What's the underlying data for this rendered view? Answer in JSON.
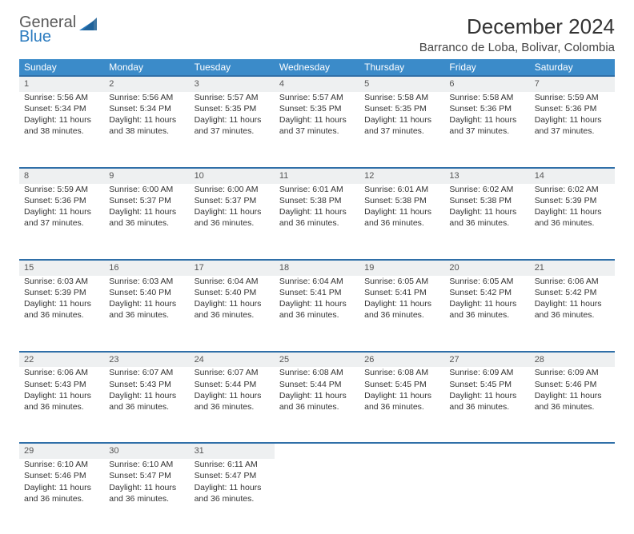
{
  "logo": {
    "word1": "General",
    "word2": "Blue"
  },
  "title": "December 2024",
  "location": "Barranco de Loba, Bolivar, Colombia",
  "colors": {
    "header_bg": "#3b8bc9",
    "header_text": "#ffffff",
    "daynum_bg": "#eef0f1",
    "daynum_border": "#2f6fa8",
    "logo_gray": "#5a5a5a",
    "logo_blue": "#2b7bbf"
  },
  "day_headers": [
    "Sunday",
    "Monday",
    "Tuesday",
    "Wednesday",
    "Thursday",
    "Friday",
    "Saturday"
  ],
  "weeks": [
    {
      "nums": [
        "1",
        "2",
        "3",
        "4",
        "5",
        "6",
        "7"
      ],
      "cells": [
        {
          "sunrise": "Sunrise: 5:56 AM",
          "sunset": "Sunset: 5:34 PM",
          "day1": "Daylight: 11 hours",
          "day2": "and 38 minutes."
        },
        {
          "sunrise": "Sunrise: 5:56 AM",
          "sunset": "Sunset: 5:34 PM",
          "day1": "Daylight: 11 hours",
          "day2": "and 38 minutes."
        },
        {
          "sunrise": "Sunrise: 5:57 AM",
          "sunset": "Sunset: 5:35 PM",
          "day1": "Daylight: 11 hours",
          "day2": "and 37 minutes."
        },
        {
          "sunrise": "Sunrise: 5:57 AM",
          "sunset": "Sunset: 5:35 PM",
          "day1": "Daylight: 11 hours",
          "day2": "and 37 minutes."
        },
        {
          "sunrise": "Sunrise: 5:58 AM",
          "sunset": "Sunset: 5:35 PM",
          "day1": "Daylight: 11 hours",
          "day2": "and 37 minutes."
        },
        {
          "sunrise": "Sunrise: 5:58 AM",
          "sunset": "Sunset: 5:36 PM",
          "day1": "Daylight: 11 hours",
          "day2": "and 37 minutes."
        },
        {
          "sunrise": "Sunrise: 5:59 AM",
          "sunset": "Sunset: 5:36 PM",
          "day1": "Daylight: 11 hours",
          "day2": "and 37 minutes."
        }
      ]
    },
    {
      "nums": [
        "8",
        "9",
        "10",
        "11",
        "12",
        "13",
        "14"
      ],
      "cells": [
        {
          "sunrise": "Sunrise: 5:59 AM",
          "sunset": "Sunset: 5:36 PM",
          "day1": "Daylight: 11 hours",
          "day2": "and 37 minutes."
        },
        {
          "sunrise": "Sunrise: 6:00 AM",
          "sunset": "Sunset: 5:37 PM",
          "day1": "Daylight: 11 hours",
          "day2": "and 36 minutes."
        },
        {
          "sunrise": "Sunrise: 6:00 AM",
          "sunset": "Sunset: 5:37 PM",
          "day1": "Daylight: 11 hours",
          "day2": "and 36 minutes."
        },
        {
          "sunrise": "Sunrise: 6:01 AM",
          "sunset": "Sunset: 5:38 PM",
          "day1": "Daylight: 11 hours",
          "day2": "and 36 minutes."
        },
        {
          "sunrise": "Sunrise: 6:01 AM",
          "sunset": "Sunset: 5:38 PM",
          "day1": "Daylight: 11 hours",
          "day2": "and 36 minutes."
        },
        {
          "sunrise": "Sunrise: 6:02 AM",
          "sunset": "Sunset: 5:38 PM",
          "day1": "Daylight: 11 hours",
          "day2": "and 36 minutes."
        },
        {
          "sunrise": "Sunrise: 6:02 AM",
          "sunset": "Sunset: 5:39 PM",
          "day1": "Daylight: 11 hours",
          "day2": "and 36 minutes."
        }
      ]
    },
    {
      "nums": [
        "15",
        "16",
        "17",
        "18",
        "19",
        "20",
        "21"
      ],
      "cells": [
        {
          "sunrise": "Sunrise: 6:03 AM",
          "sunset": "Sunset: 5:39 PM",
          "day1": "Daylight: 11 hours",
          "day2": "and 36 minutes."
        },
        {
          "sunrise": "Sunrise: 6:03 AM",
          "sunset": "Sunset: 5:40 PM",
          "day1": "Daylight: 11 hours",
          "day2": "and 36 minutes."
        },
        {
          "sunrise": "Sunrise: 6:04 AM",
          "sunset": "Sunset: 5:40 PM",
          "day1": "Daylight: 11 hours",
          "day2": "and 36 minutes."
        },
        {
          "sunrise": "Sunrise: 6:04 AM",
          "sunset": "Sunset: 5:41 PM",
          "day1": "Daylight: 11 hours",
          "day2": "and 36 minutes."
        },
        {
          "sunrise": "Sunrise: 6:05 AM",
          "sunset": "Sunset: 5:41 PM",
          "day1": "Daylight: 11 hours",
          "day2": "and 36 minutes."
        },
        {
          "sunrise": "Sunrise: 6:05 AM",
          "sunset": "Sunset: 5:42 PM",
          "day1": "Daylight: 11 hours",
          "day2": "and 36 minutes."
        },
        {
          "sunrise": "Sunrise: 6:06 AM",
          "sunset": "Sunset: 5:42 PM",
          "day1": "Daylight: 11 hours",
          "day2": "and 36 minutes."
        }
      ]
    },
    {
      "nums": [
        "22",
        "23",
        "24",
        "25",
        "26",
        "27",
        "28"
      ],
      "cells": [
        {
          "sunrise": "Sunrise: 6:06 AM",
          "sunset": "Sunset: 5:43 PM",
          "day1": "Daylight: 11 hours",
          "day2": "and 36 minutes."
        },
        {
          "sunrise": "Sunrise: 6:07 AM",
          "sunset": "Sunset: 5:43 PM",
          "day1": "Daylight: 11 hours",
          "day2": "and 36 minutes."
        },
        {
          "sunrise": "Sunrise: 6:07 AM",
          "sunset": "Sunset: 5:44 PM",
          "day1": "Daylight: 11 hours",
          "day2": "and 36 minutes."
        },
        {
          "sunrise": "Sunrise: 6:08 AM",
          "sunset": "Sunset: 5:44 PM",
          "day1": "Daylight: 11 hours",
          "day2": "and 36 minutes."
        },
        {
          "sunrise": "Sunrise: 6:08 AM",
          "sunset": "Sunset: 5:45 PM",
          "day1": "Daylight: 11 hours",
          "day2": "and 36 minutes."
        },
        {
          "sunrise": "Sunrise: 6:09 AM",
          "sunset": "Sunset: 5:45 PM",
          "day1": "Daylight: 11 hours",
          "day2": "and 36 minutes."
        },
        {
          "sunrise": "Sunrise: 6:09 AM",
          "sunset": "Sunset: 5:46 PM",
          "day1": "Daylight: 11 hours",
          "day2": "and 36 minutes."
        }
      ]
    },
    {
      "nums": [
        "29",
        "30",
        "31",
        "",
        "",
        "",
        ""
      ],
      "cells": [
        {
          "sunrise": "Sunrise: 6:10 AM",
          "sunset": "Sunset: 5:46 PM",
          "day1": "Daylight: 11 hours",
          "day2": "and 36 minutes."
        },
        {
          "sunrise": "Sunrise: 6:10 AM",
          "sunset": "Sunset: 5:47 PM",
          "day1": "Daylight: 11 hours",
          "day2": "and 36 minutes."
        },
        {
          "sunrise": "Sunrise: 6:11 AM",
          "sunset": "Sunset: 5:47 PM",
          "day1": "Daylight: 11 hours",
          "day2": "and 36 minutes."
        },
        null,
        null,
        null,
        null
      ]
    }
  ]
}
